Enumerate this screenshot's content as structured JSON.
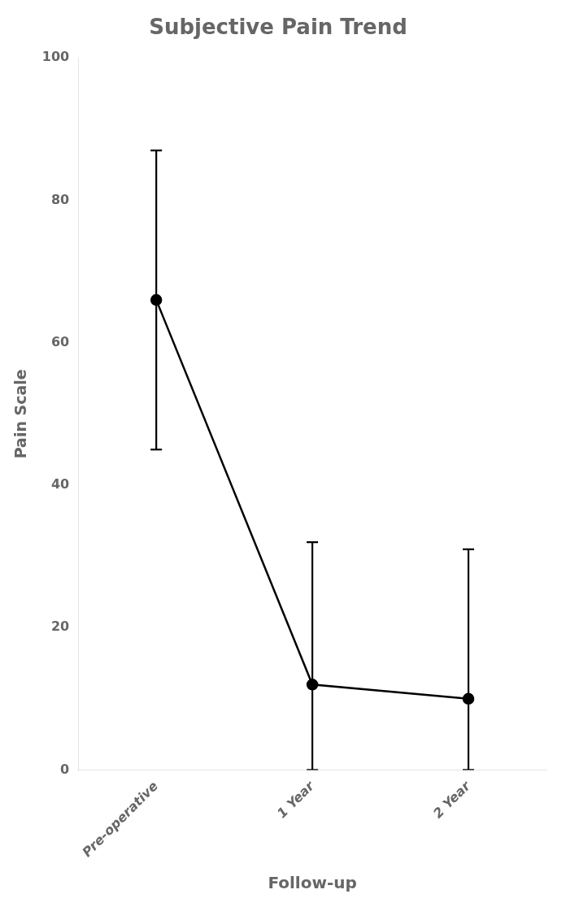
{
  "chart_data": {
    "type": "line",
    "title": "Subjective Pain Trend",
    "xlabel": "Follow-up",
    "ylabel": "Pain Scale",
    "categories": [
      "Pre-operative",
      "1 Year",
      "2 Year"
    ],
    "values": [
      66,
      12,
      10
    ],
    "error_upper": [
      21,
      20,
      21
    ],
    "error_lower": [
      21,
      12,
      10
    ],
    "color": "#000000",
    "marker": "circle",
    "ylim": [
      0,
      100
    ],
    "yticks": [
      0,
      20,
      40,
      60,
      80,
      100
    ],
    "grid": false
  }
}
